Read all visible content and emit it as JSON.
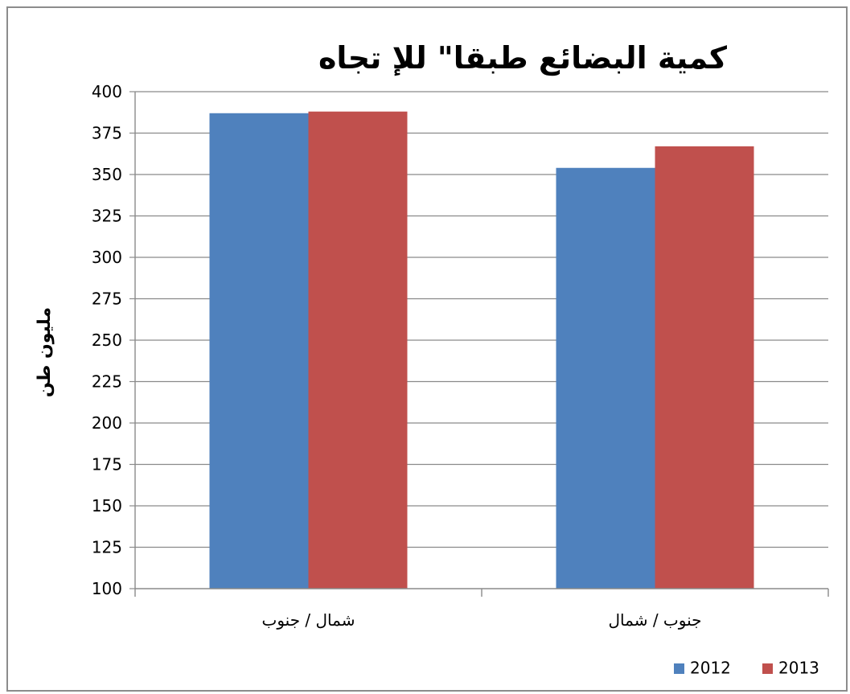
{
  "chart_data": {
    "type": "bar",
    "title": "كمية البضائع طبقا\" للإ تجاه",
    "ylabel": "مليون طن",
    "xlabel": "",
    "categories": [
      "شمال / جنوب",
      "جنوب / شمال"
    ],
    "series": [
      {
        "name": "2012",
        "values": [
          387,
          354
        ],
        "color": "#4f81bd"
      },
      {
        "name": "2013",
        "values": [
          388,
          367
        ],
        "color": "#c0504d"
      }
    ],
    "ylim": [
      100,
      400
    ],
    "yticks": [
      100,
      125,
      150,
      175,
      200,
      225,
      250,
      275,
      300,
      325,
      350,
      375,
      400
    ],
    "grid": true,
    "legend_position": "bottom-right"
  }
}
